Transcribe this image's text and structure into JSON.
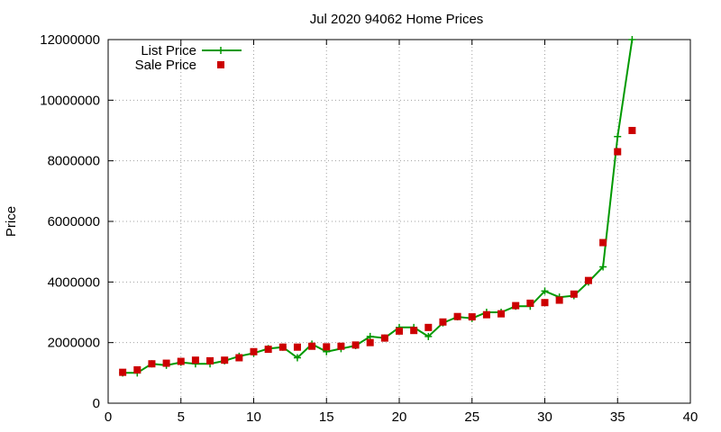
{
  "chart_data": {
    "type": "line",
    "title": "Jul 2020 94062 Home Prices",
    "xlabel": "",
    "ylabel": "Price",
    "xlim": [
      0,
      40
    ],
    "ylim": [
      0,
      12000000
    ],
    "x_ticks": [
      0,
      5,
      10,
      15,
      20,
      25,
      30,
      35,
      40
    ],
    "y_ticks": [
      0,
      2000000,
      4000000,
      6000000,
      8000000,
      10000000,
      12000000
    ],
    "grid": true,
    "legend_position": "top-left",
    "x": [
      1,
      2,
      3,
      4,
      5,
      6,
      7,
      8,
      9,
      10,
      11,
      12,
      13,
      14,
      15,
      16,
      17,
      18,
      19,
      20,
      21,
      22,
      23,
      24,
      25,
      26,
      27,
      28,
      29,
      30,
      31,
      32,
      33,
      34,
      35,
      36
    ],
    "series": [
      {
        "name": "List Price",
        "style": "line-with-plus",
        "color": "#009900",
        "values": [
          1000000,
          1000000,
          1300000,
          1250000,
          1350000,
          1300000,
          1300000,
          1400000,
          1550000,
          1650000,
          1800000,
          1850000,
          1500000,
          1950000,
          1700000,
          1800000,
          1900000,
          2200000,
          2150000,
          2500000,
          2500000,
          2200000,
          2650000,
          2850000,
          2800000,
          3000000,
          3000000,
          3200000,
          3200000,
          3700000,
          3500000,
          3550000,
          4000000,
          4500000,
          8800000,
          12000000
        ]
      },
      {
        "name": "Sale Price",
        "style": "square-markers",
        "color": "#cc0000",
        "values": [
          1020000,
          1100000,
          1300000,
          1320000,
          1380000,
          1420000,
          1400000,
          1420000,
          1500000,
          1700000,
          1780000,
          1850000,
          1850000,
          1880000,
          1860000,
          1880000,
          1920000,
          2000000,
          2150000,
          2380000,
          2400000,
          2500000,
          2680000,
          2860000,
          2850000,
          2920000,
          2950000,
          3220000,
          3300000,
          3320000,
          3400000,
          3600000,
          4050000,
          5300000,
          8300000,
          9000000
        ]
      }
    ]
  }
}
